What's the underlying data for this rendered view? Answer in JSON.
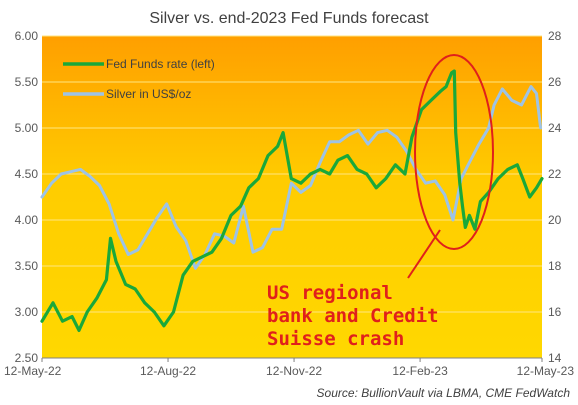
{
  "chart_data": {
    "type": "line",
    "title": "Silver vs. end-2023 Fed Funds forecast",
    "source": "Source: BullionVault via LBMA, CME FedWatch",
    "x_ticks": [
      "12-May-22",
      "12-Aug-22",
      "12-Nov-22",
      "12-Feb-23",
      "12-May-23"
    ],
    "x_range": [
      "2022-05-12",
      "2023-05-12"
    ],
    "y_left": {
      "min": 2.5,
      "max": 6.0,
      "ticks": [
        "2.50",
        "3.00",
        "3.50",
        "4.00",
        "4.50",
        "5.00",
        "5.50",
        "6.00"
      ]
    },
    "y_right": {
      "min": 14,
      "max": 28,
      "ticks": [
        "14",
        "16",
        "18",
        "20",
        "22",
        "24",
        "26",
        "28"
      ]
    },
    "background": "gradient yellow (#ffd700) at bottom to orange (#ffa000) at top",
    "legend_position": "top-left",
    "series": [
      {
        "name": "Fed Funds rate (left)",
        "axis": "left",
        "color": "#1aa83a",
        "points": [
          [
            "2022-05-12",
            2.9
          ],
          [
            "2022-05-20",
            3.1
          ],
          [
            "2022-05-27",
            2.9
          ],
          [
            "2022-06-03",
            2.95
          ],
          [
            "2022-06-08",
            2.8
          ],
          [
            "2022-06-14",
            3.0
          ],
          [
            "2022-06-21",
            3.15
          ],
          [
            "2022-06-28",
            3.35
          ],
          [
            "2022-07-01",
            3.8
          ],
          [
            "2022-07-05",
            3.55
          ],
          [
            "2022-07-12",
            3.3
          ],
          [
            "2022-07-19",
            3.25
          ],
          [
            "2022-07-26",
            3.1
          ],
          [
            "2022-08-02",
            3.0
          ],
          [
            "2022-08-09",
            2.85
          ],
          [
            "2022-08-16",
            3.0
          ],
          [
            "2022-08-23",
            3.4
          ],
          [
            "2022-08-30",
            3.55
          ],
          [
            "2022-09-06",
            3.6
          ],
          [
            "2022-09-13",
            3.65
          ],
          [
            "2022-09-20",
            3.8
          ],
          [
            "2022-09-27",
            4.05
          ],
          [
            "2022-10-04",
            4.15
          ],
          [
            "2022-10-10",
            4.35
          ],
          [
            "2022-10-17",
            4.45
          ],
          [
            "2022-10-24",
            4.7
          ],
          [
            "2022-10-31",
            4.8
          ],
          [
            "2022-11-04",
            4.95
          ],
          [
            "2022-11-10",
            4.45
          ],
          [
            "2022-11-17",
            4.4
          ],
          [
            "2022-11-24",
            4.5
          ],
          [
            "2022-12-01",
            4.55
          ],
          [
            "2022-12-08",
            4.5
          ],
          [
            "2022-12-14",
            4.65
          ],
          [
            "2022-12-21",
            4.7
          ],
          [
            "2022-12-28",
            4.55
          ],
          [
            "2023-01-04",
            4.5
          ],
          [
            "2023-01-11",
            4.35
          ],
          [
            "2023-01-18",
            4.45
          ],
          [
            "2023-01-25",
            4.6
          ],
          [
            "2023-02-01",
            4.5
          ],
          [
            "2023-02-06",
            4.9
          ],
          [
            "2023-02-13",
            5.2
          ],
          [
            "2023-02-20",
            5.3
          ],
          [
            "2023-02-27",
            5.4
          ],
          [
            "2023-03-03",
            5.45
          ],
          [
            "2023-03-07",
            5.6
          ],
          [
            "2023-03-09",
            5.62
          ],
          [
            "2023-03-10",
            4.95
          ],
          [
            "2023-03-13",
            4.4
          ],
          [
            "2023-03-15",
            4.15
          ],
          [
            "2023-03-17",
            3.92
          ],
          [
            "2023-03-20",
            4.05
          ],
          [
            "2023-03-24",
            3.9
          ],
          [
            "2023-03-28",
            4.2
          ],
          [
            "2023-04-03",
            4.3
          ],
          [
            "2023-04-10",
            4.45
          ],
          [
            "2023-04-17",
            4.55
          ],
          [
            "2023-04-24",
            4.6
          ],
          [
            "2023-04-28",
            4.45
          ],
          [
            "2023-05-03",
            4.25
          ],
          [
            "2023-05-08",
            4.35
          ],
          [
            "2023-05-12",
            4.45
          ]
        ]
      },
      {
        "name": "Silver in US$/oz",
        "axis": "right",
        "color": "#9dc3e6",
        "points": [
          [
            "2022-05-12",
            21.0
          ],
          [
            "2022-05-19",
            21.6
          ],
          [
            "2022-05-26",
            22.0
          ],
          [
            "2022-06-02",
            22.1
          ],
          [
            "2022-06-09",
            22.2
          ],
          [
            "2022-06-16",
            21.9
          ],
          [
            "2022-06-23",
            21.5
          ],
          [
            "2022-06-30",
            20.7
          ],
          [
            "2022-07-07",
            19.4
          ],
          [
            "2022-07-14",
            18.5
          ],
          [
            "2022-07-21",
            18.7
          ],
          [
            "2022-07-28",
            19.4
          ],
          [
            "2022-08-04",
            20.1
          ],
          [
            "2022-08-11",
            20.7
          ],
          [
            "2022-08-18",
            19.7
          ],
          [
            "2022-08-25",
            19.1
          ],
          [
            "2022-09-01",
            17.9
          ],
          [
            "2022-09-08",
            18.5
          ],
          [
            "2022-09-15",
            19.4
          ],
          [
            "2022-09-22",
            19.3
          ],
          [
            "2022-09-29",
            19.0
          ],
          [
            "2022-10-06",
            20.6
          ],
          [
            "2022-10-13",
            18.6
          ],
          [
            "2022-10-20",
            18.8
          ],
          [
            "2022-10-27",
            19.6
          ],
          [
            "2022-11-03",
            19.6
          ],
          [
            "2022-11-10",
            21.6
          ],
          [
            "2022-11-17",
            21.2
          ],
          [
            "2022-11-24",
            21.5
          ],
          [
            "2022-12-01",
            22.5
          ],
          [
            "2022-12-08",
            23.4
          ],
          [
            "2022-12-15",
            23.4
          ],
          [
            "2022-12-22",
            23.7
          ],
          [
            "2022-12-29",
            23.9
          ],
          [
            "2023-01-05",
            23.3
          ],
          [
            "2023-01-12",
            23.8
          ],
          [
            "2023-01-19",
            23.9
          ],
          [
            "2023-01-26",
            23.6
          ],
          [
            "2023-02-02",
            23.0
          ],
          [
            "2023-02-09",
            22.2
          ],
          [
            "2023-02-16",
            21.6
          ],
          [
            "2023-02-23",
            21.7
          ],
          [
            "2023-03-02",
            21.1
          ],
          [
            "2023-03-08",
            20.0
          ],
          [
            "2023-03-14",
            21.8
          ],
          [
            "2023-03-20",
            22.5
          ],
          [
            "2023-03-27",
            23.3
          ],
          [
            "2023-04-03",
            24.0
          ],
          [
            "2023-04-07",
            25.0
          ],
          [
            "2023-04-13",
            25.7
          ],
          [
            "2023-04-20",
            25.2
          ],
          [
            "2023-04-27",
            25.0
          ],
          [
            "2023-05-04",
            25.8
          ],
          [
            "2023-05-08",
            25.5
          ],
          [
            "2023-05-11",
            24.0
          ]
        ]
      }
    ],
    "annotation": {
      "lines": [
        "US regional",
        "bank and Credit",
        "Suisse crash"
      ],
      "color": "#e0201b",
      "shape": "ellipse around March 2023 collapse"
    }
  }
}
